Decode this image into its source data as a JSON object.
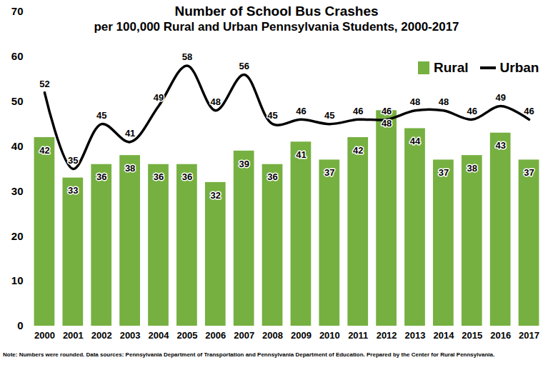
{
  "chart_data": {
    "type": "bar",
    "title": "Number of School Bus Crashes",
    "subtitle": "per 100,000 Rural and Urban Pennsylvania Students, 2000-2017",
    "caption": "Note: Numbers were rounded. Data sources: Pennsylvania Department of Transportation and Pennsylvania Department of Education. Prepared by the Center for Rural Pennsylvania.",
    "categories": [
      "2000",
      "2001",
      "2002",
      "2003",
      "2004",
      "2005",
      "2006",
      "2007",
      "2008",
      "2009",
      "2010",
      "2011",
      "2012",
      "2013",
      "2014",
      "2015",
      "2016",
      "2017"
    ],
    "series": [
      {
        "name": "Rural",
        "type": "bar",
        "color": "#76b041",
        "values": [
          42,
          33,
          36,
          38,
          36,
          36,
          32,
          39,
          36,
          41,
          37,
          42,
          48,
          44,
          37,
          38,
          43,
          37
        ]
      },
      {
        "name": "Urban",
        "type": "line",
        "color": "#000000",
        "values": [
          52,
          35,
          45,
          41,
          49,
          58,
          48,
          56,
          45,
          46,
          45,
          46,
          46,
          48,
          48,
          46,
          49,
          46
        ]
      }
    ],
    "ylim": [
      0,
      70
    ],
    "yticks": [
      0,
      10,
      20,
      30,
      40,
      50,
      60,
      70
    ],
    "grid": false,
    "legend": "top-right",
    "data_labels": true
  }
}
